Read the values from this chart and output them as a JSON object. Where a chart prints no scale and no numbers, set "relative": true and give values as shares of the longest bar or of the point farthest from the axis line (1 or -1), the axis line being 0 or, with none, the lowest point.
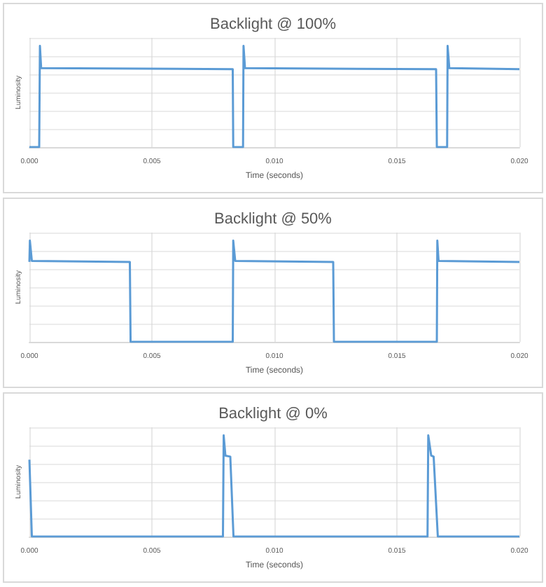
{
  "chart_data": [
    {
      "type": "line",
      "title": "Backlight @ 100%",
      "xlabel": "Time (seconds)",
      "ylabel": "Luminosity",
      "relative": true,
      "grid": true,
      "tick_labels": "x",
      "marker": "none",
      "xlim": [
        0,
        0.02
      ],
      "xticks": [
        {
          "value": 0,
          "label": "0.000"
        },
        {
          "value": 0.005,
          "label": "0.005"
        },
        {
          "value": 0.01,
          "label": "0.010"
        },
        {
          "value": 0.015,
          "label": "0.015"
        },
        {
          "value": 0.02,
          "label": "0.020"
        }
      ],
      "series": [
        {
          "color": "#5b9bd5",
          "x": [
            0,
            0.0004,
            0.00043,
            0.00048,
            0.0083,
            0.00832,
            0.00872,
            0.00874,
            0.0088,
            0.0166,
            0.01663,
            0.01705,
            0.01707,
            0.01714,
            0.02
          ],
          "values": [
            0,
            0,
            1,
            0.78,
            0.77,
            0,
            0,
            1,
            0.78,
            0.77,
            0,
            0,
            1,
            0.78,
            0.77
          ]
        }
      ]
    },
    {
      "type": "line",
      "title": "Backlight @ 50%",
      "xlabel": "Time (seconds)",
      "ylabel": "Luminosity",
      "relative": true,
      "grid": true,
      "tick_labels": "x",
      "marker": "none",
      "xlim": [
        0,
        0.02
      ],
      "xticks": [
        {
          "value": 0,
          "label": "0.000"
        },
        {
          "value": 0.005,
          "label": "0.005"
        },
        {
          "value": 0.01,
          "label": "0.010"
        },
        {
          "value": 0.015,
          "label": "0.015"
        },
        {
          "value": 0.02,
          "label": "0.020"
        }
      ],
      "series": [
        {
          "color": "#5b9bd5",
          "x": [
            0,
            2e-05,
            0.0001,
            0.0041,
            0.00413,
            0.0083,
            0.00832,
            0.0084,
            0.0124,
            0.01243,
            0.01663,
            0.01665,
            0.0167,
            0.02
          ],
          "values": [
            0.79,
            1,
            0.8,
            0.79,
            0,
            0,
            1,
            0.8,
            0.79,
            0,
            0,
            1,
            0.8,
            0.79
          ]
        }
      ]
    },
    {
      "type": "line",
      "title": "Backlight @ 0%",
      "xlabel": "Time (seconds)",
      "ylabel": "Luminosity",
      "relative": true,
      "grid": true,
      "tick_labels": "x",
      "marker": "none",
      "xlim": [
        0,
        0.02
      ],
      "xticks": [
        {
          "value": 0,
          "label": "0.000"
        },
        {
          "value": 0.005,
          "label": "0.005"
        },
        {
          "value": 0.01,
          "label": "0.010"
        },
        {
          "value": 0.015,
          "label": "0.015"
        },
        {
          "value": 0.02,
          "label": "0.020"
        }
      ],
      "series": [
        {
          "color": "#5b9bd5",
          "x": [
            0,
            0.0001,
            0.0079,
            0.00793,
            0.008,
            0.0082,
            0.00833,
            0.01625,
            0.01628,
            0.0164,
            0.0165,
            0.01667,
            0.02
          ],
          "values": [
            0.76,
            0,
            0,
            1,
            0.8,
            0.79,
            0,
            0,
            1,
            0.8,
            0.79,
            0,
            0
          ]
        }
      ]
    }
  ]
}
